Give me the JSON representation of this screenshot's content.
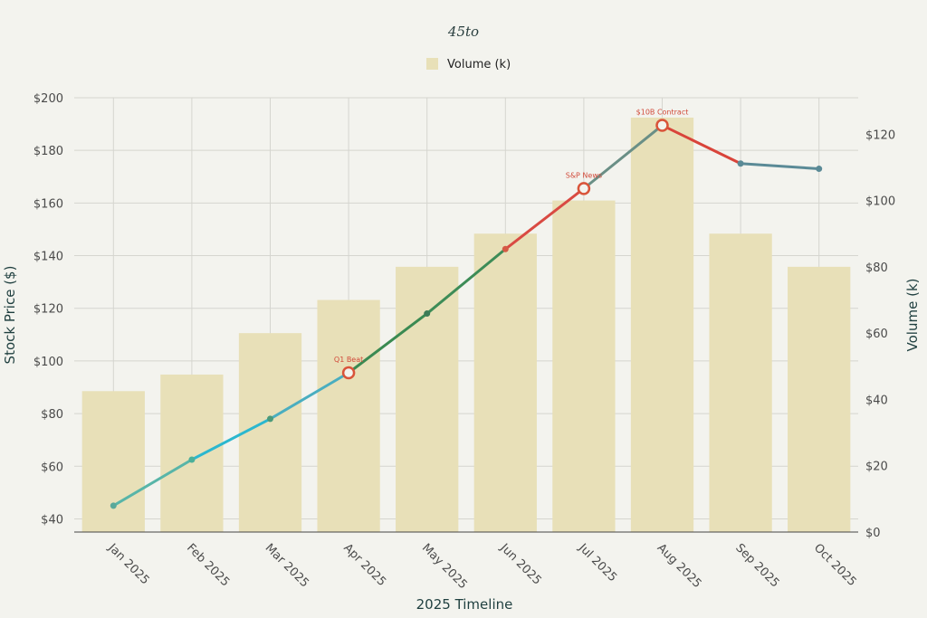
{
  "chart_data": {
    "type": "bar+line",
    "title": "45to",
    "xlabel": "2025 Timeline",
    "ylabel_left": "Stock Price ($)",
    "ylabel_right": "Volume (k)",
    "categories": [
      "Jan 2025",
      "Feb 2025",
      "Mar 2025",
      "Apr 2025",
      "May 2025",
      "Jun 2025",
      "Jul 2025",
      "Aug 2025",
      "Sep 2025",
      "Oct 2025"
    ],
    "left_ticks": [
      "$40",
      "$60",
      "$80",
      "$100",
      "$120",
      "$140",
      "$160",
      "$180",
      "$200"
    ],
    "right_ticks": [
      "$0",
      "$20",
      "$40",
      "$60",
      "$80",
      "$100",
      "$120"
    ],
    "ylim_left": [
      35,
      200
    ],
    "ylim_right": [
      0,
      131
    ],
    "grid": true,
    "legend_position": "top-center",
    "series": [
      {
        "name": "Volume (k)",
        "type": "bar",
        "axis": "right",
        "color": "#e8e0b8",
        "values": [
          42.5,
          47.5,
          60,
          70,
          80,
          90,
          100,
          125,
          90,
          80
        ]
      },
      {
        "type": "line",
        "axis": "left",
        "values": [
          45,
          62.5,
          78,
          95.5,
          118,
          142.5,
          165.5,
          189.5,
          175,
          173
        ],
        "segment_colors": [
          "#58b5a8",
          "#2bb7cf",
          "#4aaec0",
          "#3a8a52",
          "#3d8c57",
          "#d94a42",
          "#6a8f86",
          "#d9443a",
          "#5a8a96"
        ],
        "point_colors": [
          "#5aa89a",
          "#4ab09a",
          "#4a9a7a",
          "#d8543a",
          "#3d7c57",
          "#d55a45",
          "#d9443a",
          "#d9443a",
          "#5a8a96",
          "#5a8a96"
        ]
      }
    ],
    "annotations": [
      {
        "category": "Apr 2025",
        "value": 95.5,
        "text": "Q1 Beat"
      },
      {
        "category": "Jul 2025",
        "value": 165.5,
        "text": "S&P News"
      },
      {
        "category": "Aug 2025",
        "value": 189.5,
        "text": "$10B Contract"
      }
    ]
  }
}
